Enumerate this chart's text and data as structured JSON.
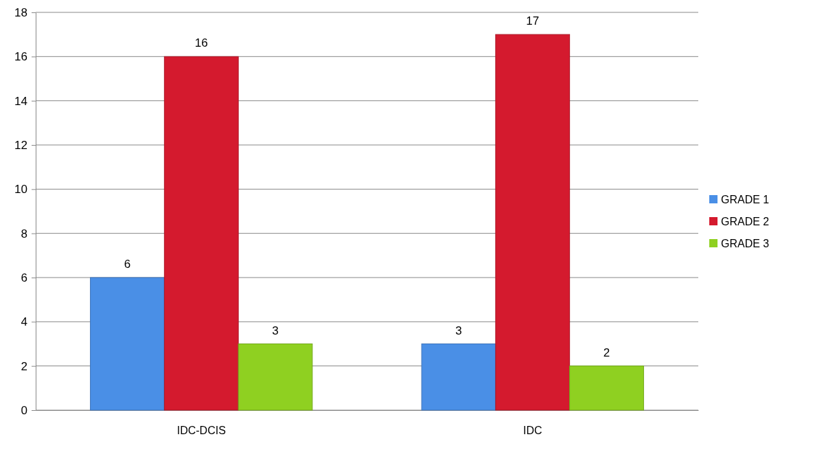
{
  "chart_data": {
    "type": "bar",
    "categories": [
      "IDC-DCIS",
      "IDC"
    ],
    "series": [
      {
        "name": "GRADE 1",
        "color": "#4a8fe6",
        "values": [
          6,
          3
        ]
      },
      {
        "name": "GRADE 2",
        "color": "#d41a2e",
        "values": [
          16,
          17
        ]
      },
      {
        "name": "GRADE 3",
        "color": "#8fd021",
        "values": [
          3,
          2
        ]
      }
    ],
    "ylim": [
      0,
      18
    ],
    "yticks": [
      0,
      2,
      4,
      6,
      8,
      10,
      12,
      14,
      16,
      18
    ],
    "grid": "y",
    "legend": "right",
    "data_labels": true
  }
}
